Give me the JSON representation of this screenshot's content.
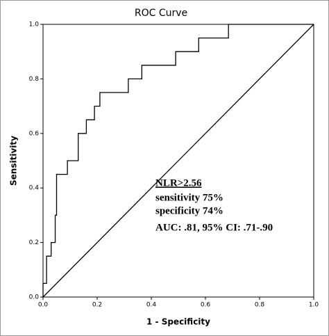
{
  "chart_data": {
    "type": "line",
    "title": "ROC Curve",
    "x_label": "1 - Specificity",
    "y_label": "Sensitivity",
    "x": [
      0,
      0,
      0.013,
      0.013,
      0.03,
      0.03,
      0.045,
      0.045,
      0.05,
      0.05,
      0.09,
      0.09,
      0.13,
      0.13,
      0.16,
      0.16,
      0.19,
      0.19,
      0.21,
      0.21,
      0.315,
      0.315,
      0.365,
      0.365,
      0.49,
      0.49,
      0.575,
      0.575,
      0.685,
      0.685,
      1
    ],
    "series": [
      {
        "color": "#000000",
        "values": [
          0,
          0.05,
          0.05,
          0.15,
          0.15,
          0.2,
          0.2,
          0.3,
          0.3,
          0.45,
          0.45,
          0.5,
          0.5,
          0.6,
          0.6,
          0.65,
          0.65,
          0.7,
          0.7,
          0.75,
          0.75,
          0.8,
          0.8,
          0.85,
          0.85,
          0.9,
          0.9,
          0.95,
          0.95,
          1,
          1
        ]
      }
    ],
    "reference_line": {
      "color": "#000000",
      "x": [
        0,
        1
      ],
      "values": [
        0,
        1
      ]
    },
    "xlim": [
      0,
      1
    ],
    "ylim": [
      0,
      1
    ],
    "xticks": [
      {
        "value": 0,
        "label": "0.0"
      },
      {
        "value": 0.2,
        "label": "0.2"
      },
      {
        "value": 0.4,
        "label": "0.4"
      },
      {
        "value": 0.6,
        "label": "0.6"
      },
      {
        "value": 0.8,
        "label": "0.8"
      },
      {
        "value": 1,
        "label": "1.0"
      }
    ],
    "yticks": [
      {
        "value": 0,
        "label": "0.0"
      },
      {
        "value": 0.2,
        "label": "0.2"
      },
      {
        "value": 0.4,
        "label": "0.4"
      },
      {
        "value": 0.6,
        "label": "0.6"
      },
      {
        "value": 0.8,
        "label": "0.8"
      },
      {
        "value": 1,
        "label": "1.0"
      }
    ],
    "annotations": [
      "NLR>2.56",
      "sensitivity 75%",
      "specificity 74%",
      "AUC: .81, 95% CI: .71-.90"
    ]
  }
}
